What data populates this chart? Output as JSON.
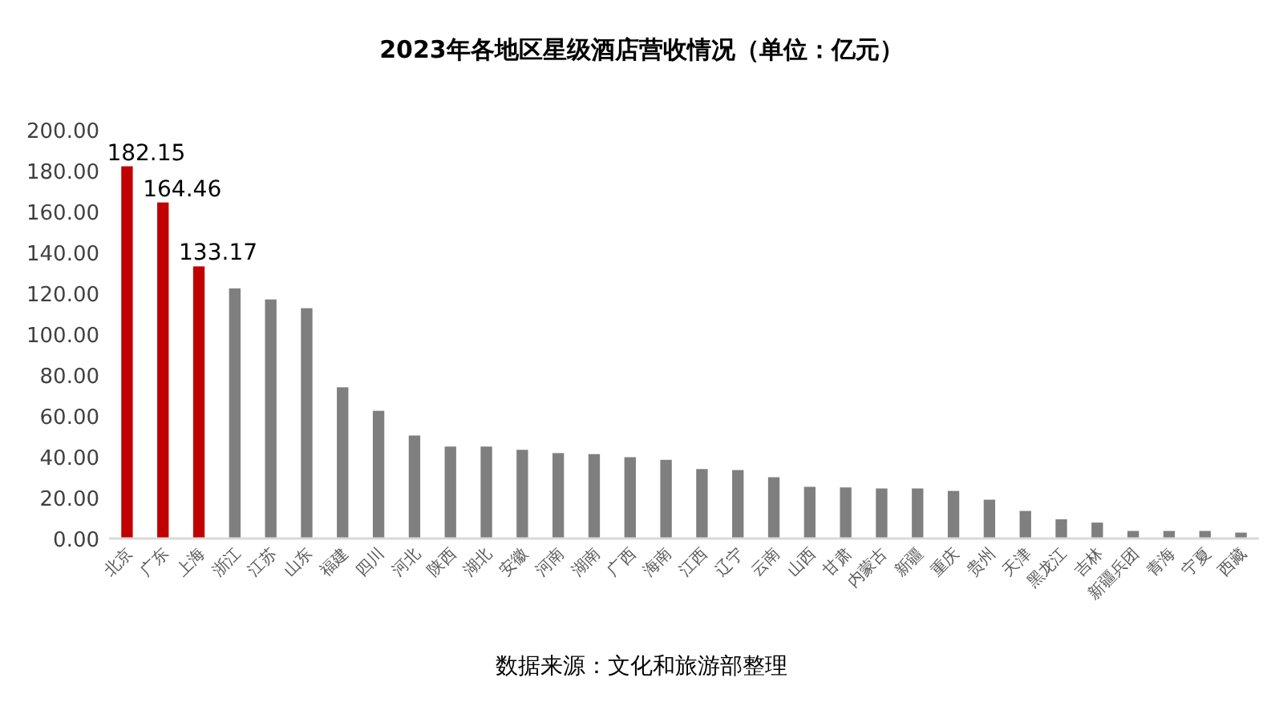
{
  "chart_data": {
    "type": "bar",
    "title": "2023年各地区星级酒店营收情况（单位：亿元）",
    "categories": [
      "北京",
      "广东",
      "上海",
      "浙江",
      "江苏",
      "山东",
      "福建",
      "四川",
      "河北",
      "陕西",
      "湖北",
      "安徽",
      "河南",
      "湖南",
      "广西",
      "海南",
      "江西",
      "辽宁",
      "云南",
      "山西",
      "甘肃",
      "内蒙古",
      "新疆",
      "重庆",
      "贵州",
      "天津",
      "黑龙江",
      "吉林",
      "新疆兵团",
      "青海",
      "宁夏",
      "西藏"
    ],
    "values": [
      182.15,
      164.46,
      133.17,
      122.4,
      117,
      112.7,
      74,
      62.5,
      50.4,
      45,
      45,
      43.4,
      41.8,
      41.3,
      39.8,
      38.5,
      34,
      33.5,
      30,
      25.3,
      25,
      24.5,
      24.5,
      23.3,
      19,
      13.5,
      9.4,
      7.8,
      3.7,
      3.7,
      3.7,
      2.9
    ],
    "colors": [
      "#c00000",
      "#c00000",
      "#c00000",
      "#7f7f7f",
      "#7f7f7f",
      "#7f7f7f",
      "#7f7f7f",
      "#7f7f7f",
      "#7f7f7f",
      "#7f7f7f",
      "#7f7f7f",
      "#7f7f7f",
      "#7f7f7f",
      "#7f7f7f",
      "#7f7f7f",
      "#7f7f7f",
      "#7f7f7f",
      "#7f7f7f",
      "#7f7f7f",
      "#7f7f7f",
      "#7f7f7f",
      "#7f7f7f",
      "#7f7f7f",
      "#7f7f7f",
      "#7f7f7f",
      "#7f7f7f",
      "#7f7f7f",
      "#7f7f7f",
      "#7f7f7f",
      "#7f7f7f",
      "#7f7f7f",
      "#7f7f7f"
    ],
    "value_labels": [
      "182.15",
      "164.46",
      "133.17",
      null,
      null,
      null,
      null,
      null,
      null,
      null,
      null,
      null,
      null,
      null,
      null,
      null,
      null,
      null,
      null,
      null,
      null,
      null,
      null,
      null,
      null,
      null,
      null,
      null,
      null,
      null,
      null,
      null
    ],
    "ylim": [
      0,
      200
    ],
    "yticks": [
      {
        "value": 0,
        "label": "0.00"
      },
      {
        "value": 20,
        "label": "20.00"
      },
      {
        "value": 40,
        "label": "40.00"
      },
      {
        "value": 60,
        "label": "60.00"
      },
      {
        "value": 80,
        "label": "80.00"
      },
      {
        "value": 100,
        "label": "100.00"
      },
      {
        "value": 120,
        "label": "120.00"
      },
      {
        "value": 140,
        "label": "140.00"
      },
      {
        "value": 160,
        "label": "160.00"
      },
      {
        "value": 180,
        "label": "180.00"
      },
      {
        "value": 200,
        "label": "200.00"
      }
    ],
    "grid": false,
    "annotations": [
      "数据来源：文化和旅游部整理"
    ]
  }
}
